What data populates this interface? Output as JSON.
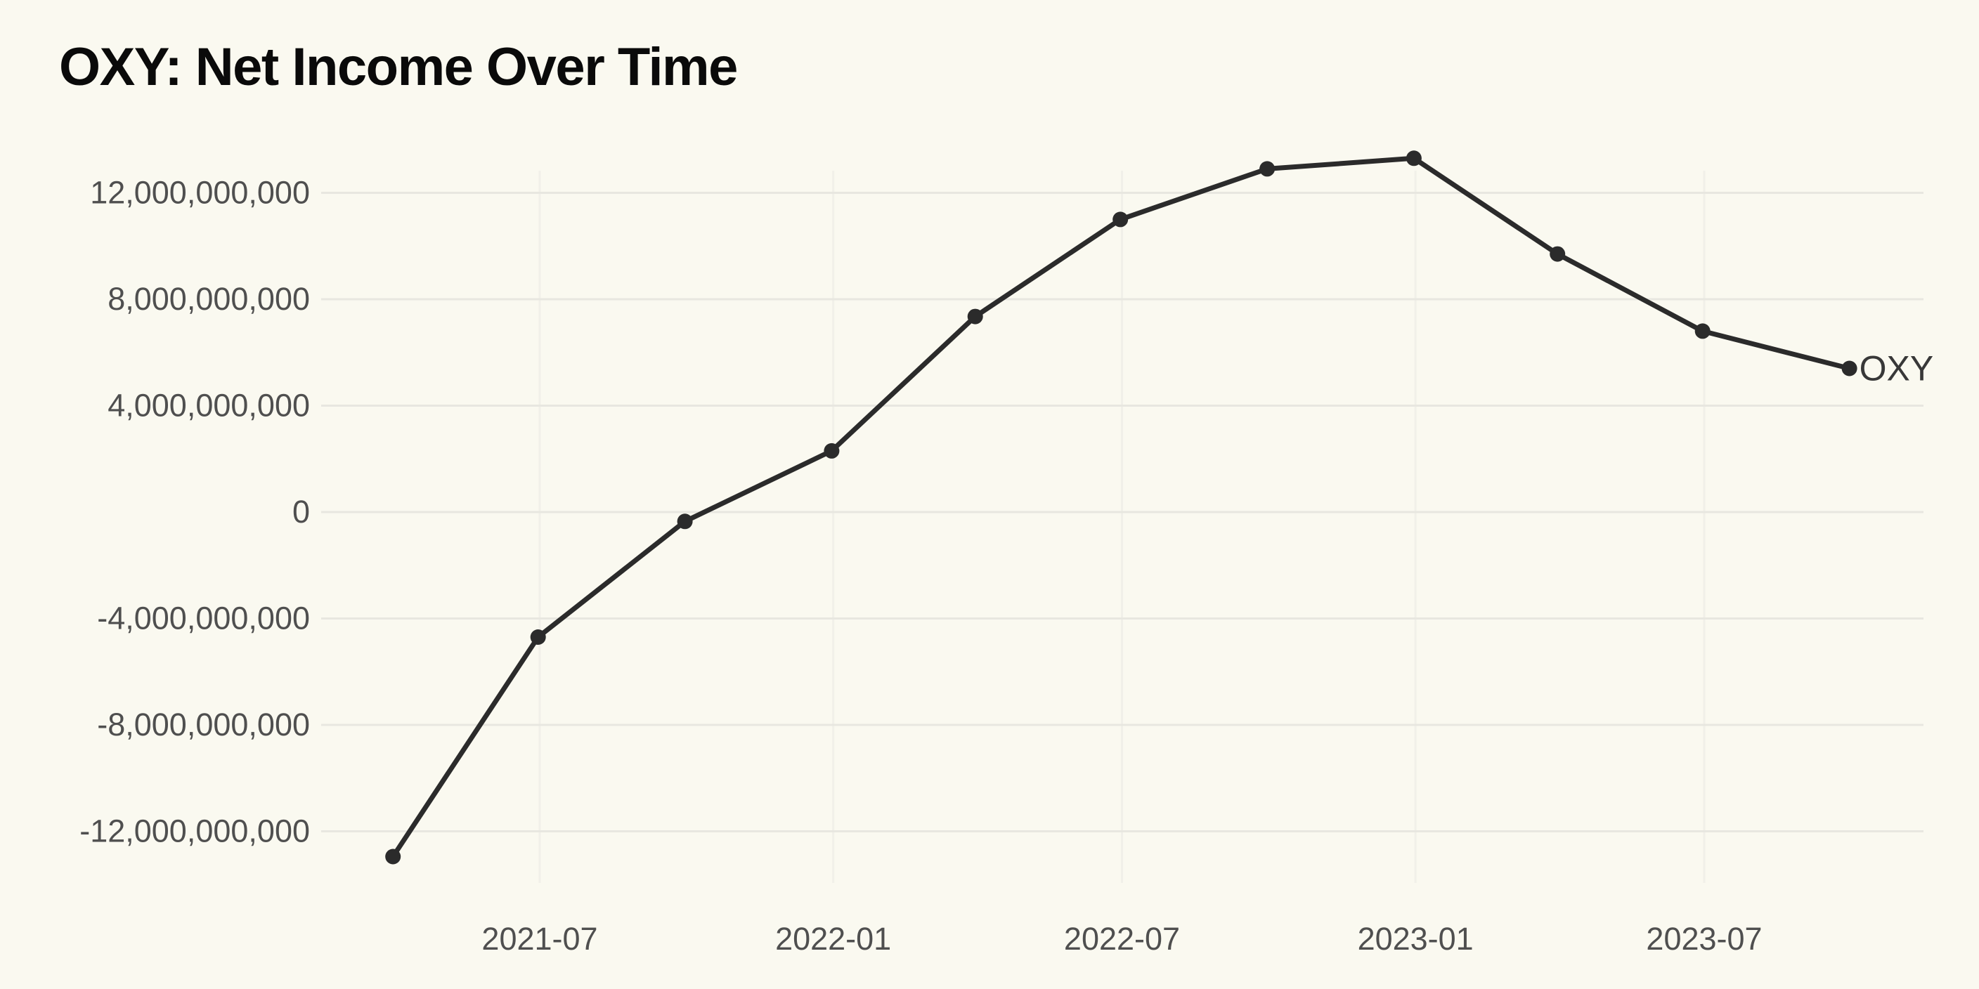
{
  "title": "OXY: Net Income Over Time",
  "colors": {
    "background": "#FAF9F0",
    "series_line": "#2B2B2B",
    "marker": "#2B2B2B",
    "grid_horizontal": "#E8E7E0",
    "grid_vertical": "#F1F0E9",
    "tick_label": "#4F4F4F",
    "title": "#0A0A0A",
    "end_label": "#383838"
  },
  "chart_data": {
    "type": "line",
    "title": "OXY: Net Income Over Time",
    "xlabel": "",
    "ylabel": "",
    "grid": true,
    "legend_position": "end-of-line",
    "ylim": [
      -14500000000,
      14500000000
    ],
    "series": [
      {
        "name": "OXY",
        "points": [
          {
            "date": "2021-03-31",
            "value": -12950000000
          },
          {
            "date": "2021-06-30",
            "value": -4700000000
          },
          {
            "date": "2021-09-30",
            "value": -350000000
          },
          {
            "date": "2021-12-31",
            "value": 2300000000
          },
          {
            "date": "2022-03-31",
            "value": 7350000000
          },
          {
            "date": "2022-06-30",
            "value": 11000000000
          },
          {
            "date": "2022-09-30",
            "value": 12900000000
          },
          {
            "date": "2022-12-31",
            "value": 13300000000
          },
          {
            "date": "2023-03-31",
            "value": 9700000000
          },
          {
            "date": "2023-06-30",
            "value": 6800000000
          },
          {
            "date": "2023-09-30",
            "value": 5400000000
          }
        ]
      }
    ],
    "x_ticks": [
      {
        "date": "2021-07-01",
        "label": "2021-07"
      },
      {
        "date": "2022-01-01",
        "label": "2022-01"
      },
      {
        "date": "2022-07-01",
        "label": "2022-07"
      },
      {
        "date": "2023-01-01",
        "label": "2023-01"
      },
      {
        "date": "2023-07-01",
        "label": "2023-07"
      }
    ],
    "y_ticks": [
      {
        "value": 12000000000,
        "label": "12,000,000,000"
      },
      {
        "value": 8000000000,
        "label": "8,000,000,000"
      },
      {
        "value": 4000000000,
        "label": "4,000,000,000"
      },
      {
        "value": 0,
        "label": "0"
      },
      {
        "value": -4000000000,
        "label": "-4,000,000,000"
      },
      {
        "value": -8000000000,
        "label": "-8,000,000,000"
      },
      {
        "value": -12000000000,
        "label": "-12,000,000,000"
      }
    ]
  }
}
